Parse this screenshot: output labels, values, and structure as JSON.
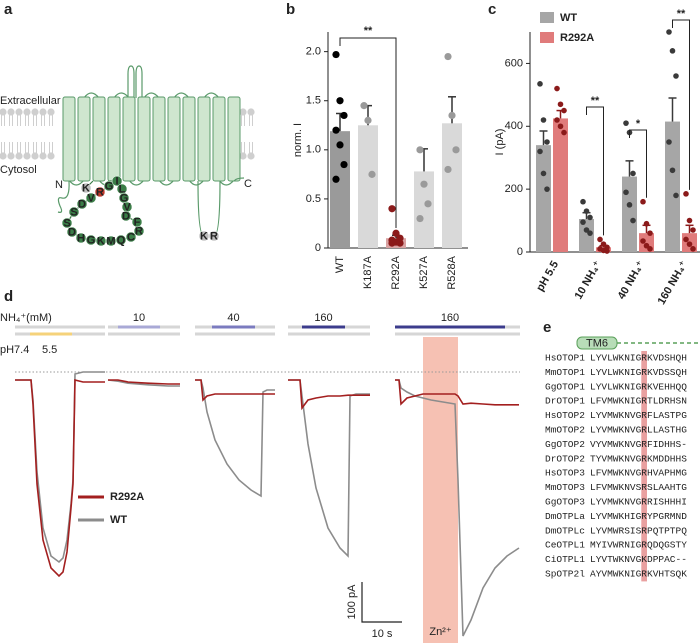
{
  "panel_labels": [
    "a",
    "b",
    "c",
    "d",
    "e"
  ],
  "diagram": {
    "extracellular": "Extracellular",
    "cytosol": "Cytosol",
    "n_terminus": "N",
    "c_terminus": "C",
    "residues": [
      {
        "label": "S",
        "color": "#3a7d47"
      },
      {
        "label": "D",
        "color": "#3a7d47"
      },
      {
        "label": "V",
        "color": "#3a7d47"
      },
      {
        "label": "R",
        "color": "#c0392b"
      },
      {
        "label": "G",
        "color": "#3a7d47"
      },
      {
        "label": "I",
        "color": "#3a7d47"
      },
      {
        "label": "L",
        "color": "#3a7d47"
      },
      {
        "label": "G",
        "color": "#3a7d47"
      },
      {
        "label": "V",
        "color": "#3a7d47"
      },
      {
        "label": "D",
        "color": "#3a7d47"
      },
      {
        "label": "S",
        "color": "#3a7d47"
      },
      {
        "label": "D",
        "color": "#3a7d47"
      },
      {
        "label": "H",
        "color": "#3a7d47"
      },
      {
        "label": "G",
        "color": "#3a7d47"
      },
      {
        "label": "K",
        "color": "#3a7d47"
      },
      {
        "label": "M",
        "color": "#3a7d47"
      },
      {
        "label": "Q",
        "color": "#3a7d47"
      },
      {
        "label": "C",
        "color": "#3a7d47"
      },
      {
        "label": "R",
        "color": "#3a7d47"
      },
      {
        "label": "F",
        "color": "#3a7d47"
      },
      {
        "label": "K",
        "color": "#bdbdbd"
      },
      {
        "label": "K",
        "color": "#bdbdbd"
      },
      {
        "label": "R",
        "color": "#bdbdbd"
      }
    ]
  },
  "chart_data": [
    {
      "type": "bar",
      "ylabel": "norm. I",
      "categories": [
        "WT",
        "K187A",
        "R292A",
        "K527A",
        "R528A"
      ],
      "values": [
        1.19,
        1.25,
        0.1,
        0.78,
        1.27
      ],
      "errors": [
        0.18,
        0.2,
        0.03,
        0.23,
        0.27
      ],
      "colors": [
        "#9a9a9a",
        "#d9d9d9",
        "#d9a3a3",
        "#d9d9d9",
        "#d9d9d9"
      ],
      "points": [
        [
          1.97,
          1.5,
          1.35,
          1.2,
          1.05,
          0.85,
          0.7
        ],
        [
          1.45,
          1.3,
          0.75
        ],
        [
          0.4,
          0.15,
          0.1,
          0.08,
          0.06,
          0.05,
          0.05
        ],
        [
          1.0,
          0.65,
          0.45,
          0.3
        ],
        [
          1.95,
          1.35,
          1.0,
          0.8
        ]
      ],
      "point_colors": [
        "#000000",
        "#9a9a9a",
        "#8b1a1a",
        "#9a9a9a",
        "#9a9a9a"
      ],
      "ylim": [
        0,
        2.2
      ],
      "yticks": [
        0,
        0.5,
        {
          "value": 1,
          "label": "1.0"
        },
        1.5,
        {
          "value": 2,
          "label": "2.0"
        }
      ],
      "significance": [
        {
          "between": [
            0,
            2
          ],
          "label": "**"
        }
      ]
    },
    {
      "type": "grouped_bar",
      "ylabel": "I (pA)",
      "categories": [
        "pH 5.5",
        "10 NH₄⁺",
        "40 NH₄⁺",
        "160 NH₄⁺"
      ],
      "series": [
        {
          "name": "WT",
          "color": "#a6a6a6",
          "point_color": "#3a3a3a",
          "values": [
            340,
            105,
            240,
            415
          ],
          "errors": [
            45,
            20,
            50,
            75
          ],
          "points": [
            [
              535,
              420,
              350,
              320,
              250,
              200
            ],
            [
              160,
              130,
              110,
              95,
              70,
              60
            ],
            [
              410,
              380,
              250,
              190,
              150,
              100
            ],
            [
              700,
              640,
              560,
              350,
              260,
              180
            ]
          ]
        },
        {
          "name": "R292A",
          "color": "#e07b7b",
          "point_color": "#8b1a1a",
          "values": [
            425,
            15,
            60,
            60
          ],
          "errors": [
            25,
            5,
            25,
            25
          ],
          "points": [
            [
              520,
              470,
              450,
              420,
              400,
              380
            ],
            [
              40,
              25,
              15,
              10,
              5,
              3
            ],
            [
              160,
              90,
              60,
              35,
              20,
              10
            ],
            [
              185,
              100,
              70,
              40,
              25,
              10
            ]
          ]
        }
      ],
      "ylim": [
        0,
        700
      ],
      "yticks": [
        0,
        200,
        400,
        600
      ],
      "legend": "top-left",
      "significance": [
        {
          "category": 1,
          "label": "**"
        },
        {
          "category": 2,
          "label": "*"
        },
        {
          "category": 3,
          "label": "**"
        }
      ]
    }
  ],
  "traces": {
    "protocol_label": "NH₄⁺(mM)",
    "ph_label": "pH7.4",
    "ph_step": "5.5",
    "series": [
      {
        "name": "R292A",
        "color": "#a31f1f"
      },
      {
        "name": "WT",
        "color": "#8c8c8c"
      }
    ],
    "segments": [
      {
        "label": null,
        "bar_color": "#f5d27a",
        "bar_row": "ph",
        "bar_t": [
          3.75,
          14.25
        ],
        "t": [
          0,
          4,
          4.5,
          5.5,
          7,
          9,
          11,
          12,
          13,
          14,
          14.5,
          15,
          17,
          20,
          22.5
        ],
        "values": [
          [
            0,
            0,
            -60,
            -260,
            -400,
            -470,
            -490,
            -480,
            -430,
            -320,
            -260,
            0,
            -5,
            -5,
            -5
          ],
          [
            0,
            0,
            -50,
            -230,
            -370,
            -440,
            -455,
            -445,
            -400,
            -310,
            -250,
            15,
            20,
            20,
            20
          ]
        ]
      },
      {
        "label": "10",
        "bar_color": "#a9a9d6",
        "bar_row": "nh4",
        "bar_t": [
          2.5,
          13
        ],
        "t": [
          0,
          2.5,
          5,
          10,
          15,
          18
        ],
        "values": [
          [
            0,
            0,
            -5,
            -8,
            -10,
            -10
          ],
          [
            0,
            -3,
            -8,
            -12,
            -15,
            -15
          ]
        ]
      },
      {
        "label": "40",
        "bar_color": "#7b7bbf",
        "bar_row": "nh4",
        "bar_t": [
          4.25,
          15
        ],
        "t": [
          0,
          1.5,
          2,
          3,
          5,
          8,
          11,
          14,
          16.5,
          17,
          18,
          20
        ],
        "values": [
          [
            0,
            0,
            -50,
            -40,
            -35,
            -35,
            -35,
            -35,
            -35,
            -35,
            -35,
            -35
          ],
          [
            0,
            0,
            -20,
            -80,
            -150,
            -210,
            -250,
            -275,
            -290,
            -30,
            -25,
            -25
          ]
        ]
      },
      {
        "label": "160",
        "bar_color": "#3c3c8c",
        "bar_row": "nh4",
        "bar_t": [
          3.5,
          14.25
        ],
        "t": [
          0,
          3,
          3.5,
          5,
          7,
          10,
          13,
          15,
          15.5,
          17,
          20.5
        ],
        "values": [
          [
            0,
            0,
            -70,
            -50,
            -45,
            -40,
            -40,
            -38,
            -38,
            -38,
            -38
          ],
          [
            0,
            0,
            -40,
            -160,
            -270,
            -370,
            -420,
            -440,
            -40,
            -35,
            -35
          ]
        ]
      },
      {
        "label": "160",
        "bar_color": "#3c3c8c",
        "bar_row": "nh4",
        "bar_t": [
          0,
          27.5
        ],
        "t": [
          0,
          1,
          1.5,
          3,
          5,
          7,
          9,
          12,
          15,
          15.75,
          17,
          19,
          22,
          25,
          28,
          31
        ],
        "values": [
          [
            0,
            0,
            -60,
            -45,
            -40,
            -35,
            -35,
            -35,
            -35,
            -40,
            -60,
            -58,
            -60,
            -62,
            -62,
            -62
          ],
          [
            0,
            0,
            -20,
            -30,
            -40,
            -45,
            -50,
            -55,
            -60,
            -250,
            -640,
            -600,
            -520,
            -470,
            -440,
            -420
          ]
        ]
      }
    ],
    "zn": {
      "label": "Zn²⁺",
      "t": [
        7,
        15.75
      ]
    },
    "scale_bars": {
      "current": {
        "value": 100,
        "label": "100 pA"
      },
      "time": {
        "value": 10,
        "label": "10 s"
      }
    }
  },
  "alignment": {
    "domain_label": "TM6",
    "highlight_column": 9,
    "rows": [
      {
        "name": "HsOTOP1",
        "sequence": "LYVLWKNIGRKVDSHQH"
      },
      {
        "name": "MmOTOP1",
        "sequence": "LYVLWKNIGRKVDSSQH"
      },
      {
        "name": "GgOTOP1",
        "sequence": "LYVLWKNIGRKVEHHQQ"
      },
      {
        "name": "DrOTOP1",
        "sequence": "LFVMWKNIGRTLDRHSN"
      },
      {
        "name": "HsOTOP2",
        "sequence": "LYVMWKNVGRFLASTPG"
      },
      {
        "name": "MmOTOP2",
        "sequence": "LYVMWKNVGRLLASTHG"
      },
      {
        "name": "GgOTOP2",
        "sequence": "VYVMWKNVGRFIDHHS-"
      },
      {
        "name": "DrOTOP2",
        "sequence": "TYVMWKNVGRKMDDHHS"
      },
      {
        "name": "HsOTOP3",
        "sequence": "LFVMWKNVGRHVAPHMG"
      },
      {
        "name": "MmOTOP3",
        "sequence": "LFVMWKNVSRSLAAHTG"
      },
      {
        "name": "GgOTOP3",
        "sequence": "LYVMWKNVGRRISHHHI"
      },
      {
        "name": "DmOTPLa",
        "sequence": "LYVMWKHIGRYPGRMND"
      },
      {
        "name": "DmOTPLc",
        "sequence": "LYVMWRSISRPQTPTPQ"
      },
      {
        "name": "CeOTPL1",
        "sequence": "MYIVWRNIGRQDQGSTY"
      },
      {
        "name": "CiOTPL1",
        "sequence": "LYVTWKNVGKDPPAC--"
      },
      {
        "name": "SpOTP2l",
        "sequence": "AYVMWKNIGRKVHTSQK"
      }
    ]
  }
}
